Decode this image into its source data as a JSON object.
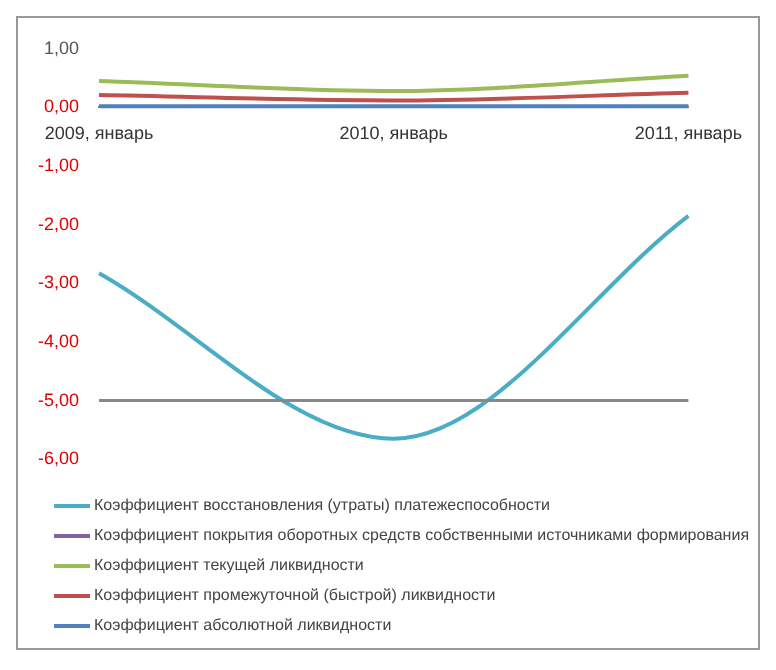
{
  "chart_data": {
    "type": "line",
    "categories": [
      "2009, январь",
      "2010, январь",
      "2011, январь"
    ],
    "series": [
      {
        "name": "Коэффициент восстановления (утраты) платежеспособности",
        "color": "#4bacc6",
        "values": [
          -2.83,
          -5.65,
          -1.85
        ]
      },
      {
        "name": "Коэффициент покрытия оборотных средств собственными источниками формирования",
        "color": "#8064a2",
        "values": [
          null,
          null,
          null
        ]
      },
      {
        "name": "Коэффициент текущей ликвидности",
        "color": "#9bbb59",
        "values": [
          0.45,
          0.28,
          0.54
        ]
      },
      {
        "name": "Коэффициент промежуточной (быстрой) ликвидности",
        "color": "#c0504d",
        "values": [
          0.21,
          0.12,
          0.25
        ]
      },
      {
        "name": "Коэффициент абсолютной ликвидности",
        "color": "#4f81bd",
        "values": [
          0.02,
          0.02,
          0.02
        ]
      }
    ],
    "ylim": [
      -6,
      1
    ],
    "yticks": [
      {
        "value": 1,
        "label": "1,00"
      },
      {
        "value": 0,
        "label": "0,00"
      },
      {
        "value": -1,
        "label": "-1,00"
      },
      {
        "value": -2,
        "label": "-2,00"
      },
      {
        "value": -3,
        "label": "-3,00"
      },
      {
        "value": -4,
        "label": "-4,00"
      },
      {
        "value": -5,
        "label": "-5,00"
      },
      {
        "value": -6,
        "label": "-6,00"
      }
    ],
    "ref_lines": [
      {
        "axis": "y",
        "value": -5,
        "color": "#888888"
      }
    ],
    "grid": false,
    "legend": "bottom",
    "marker": "none",
    "line_style": "solid"
  }
}
